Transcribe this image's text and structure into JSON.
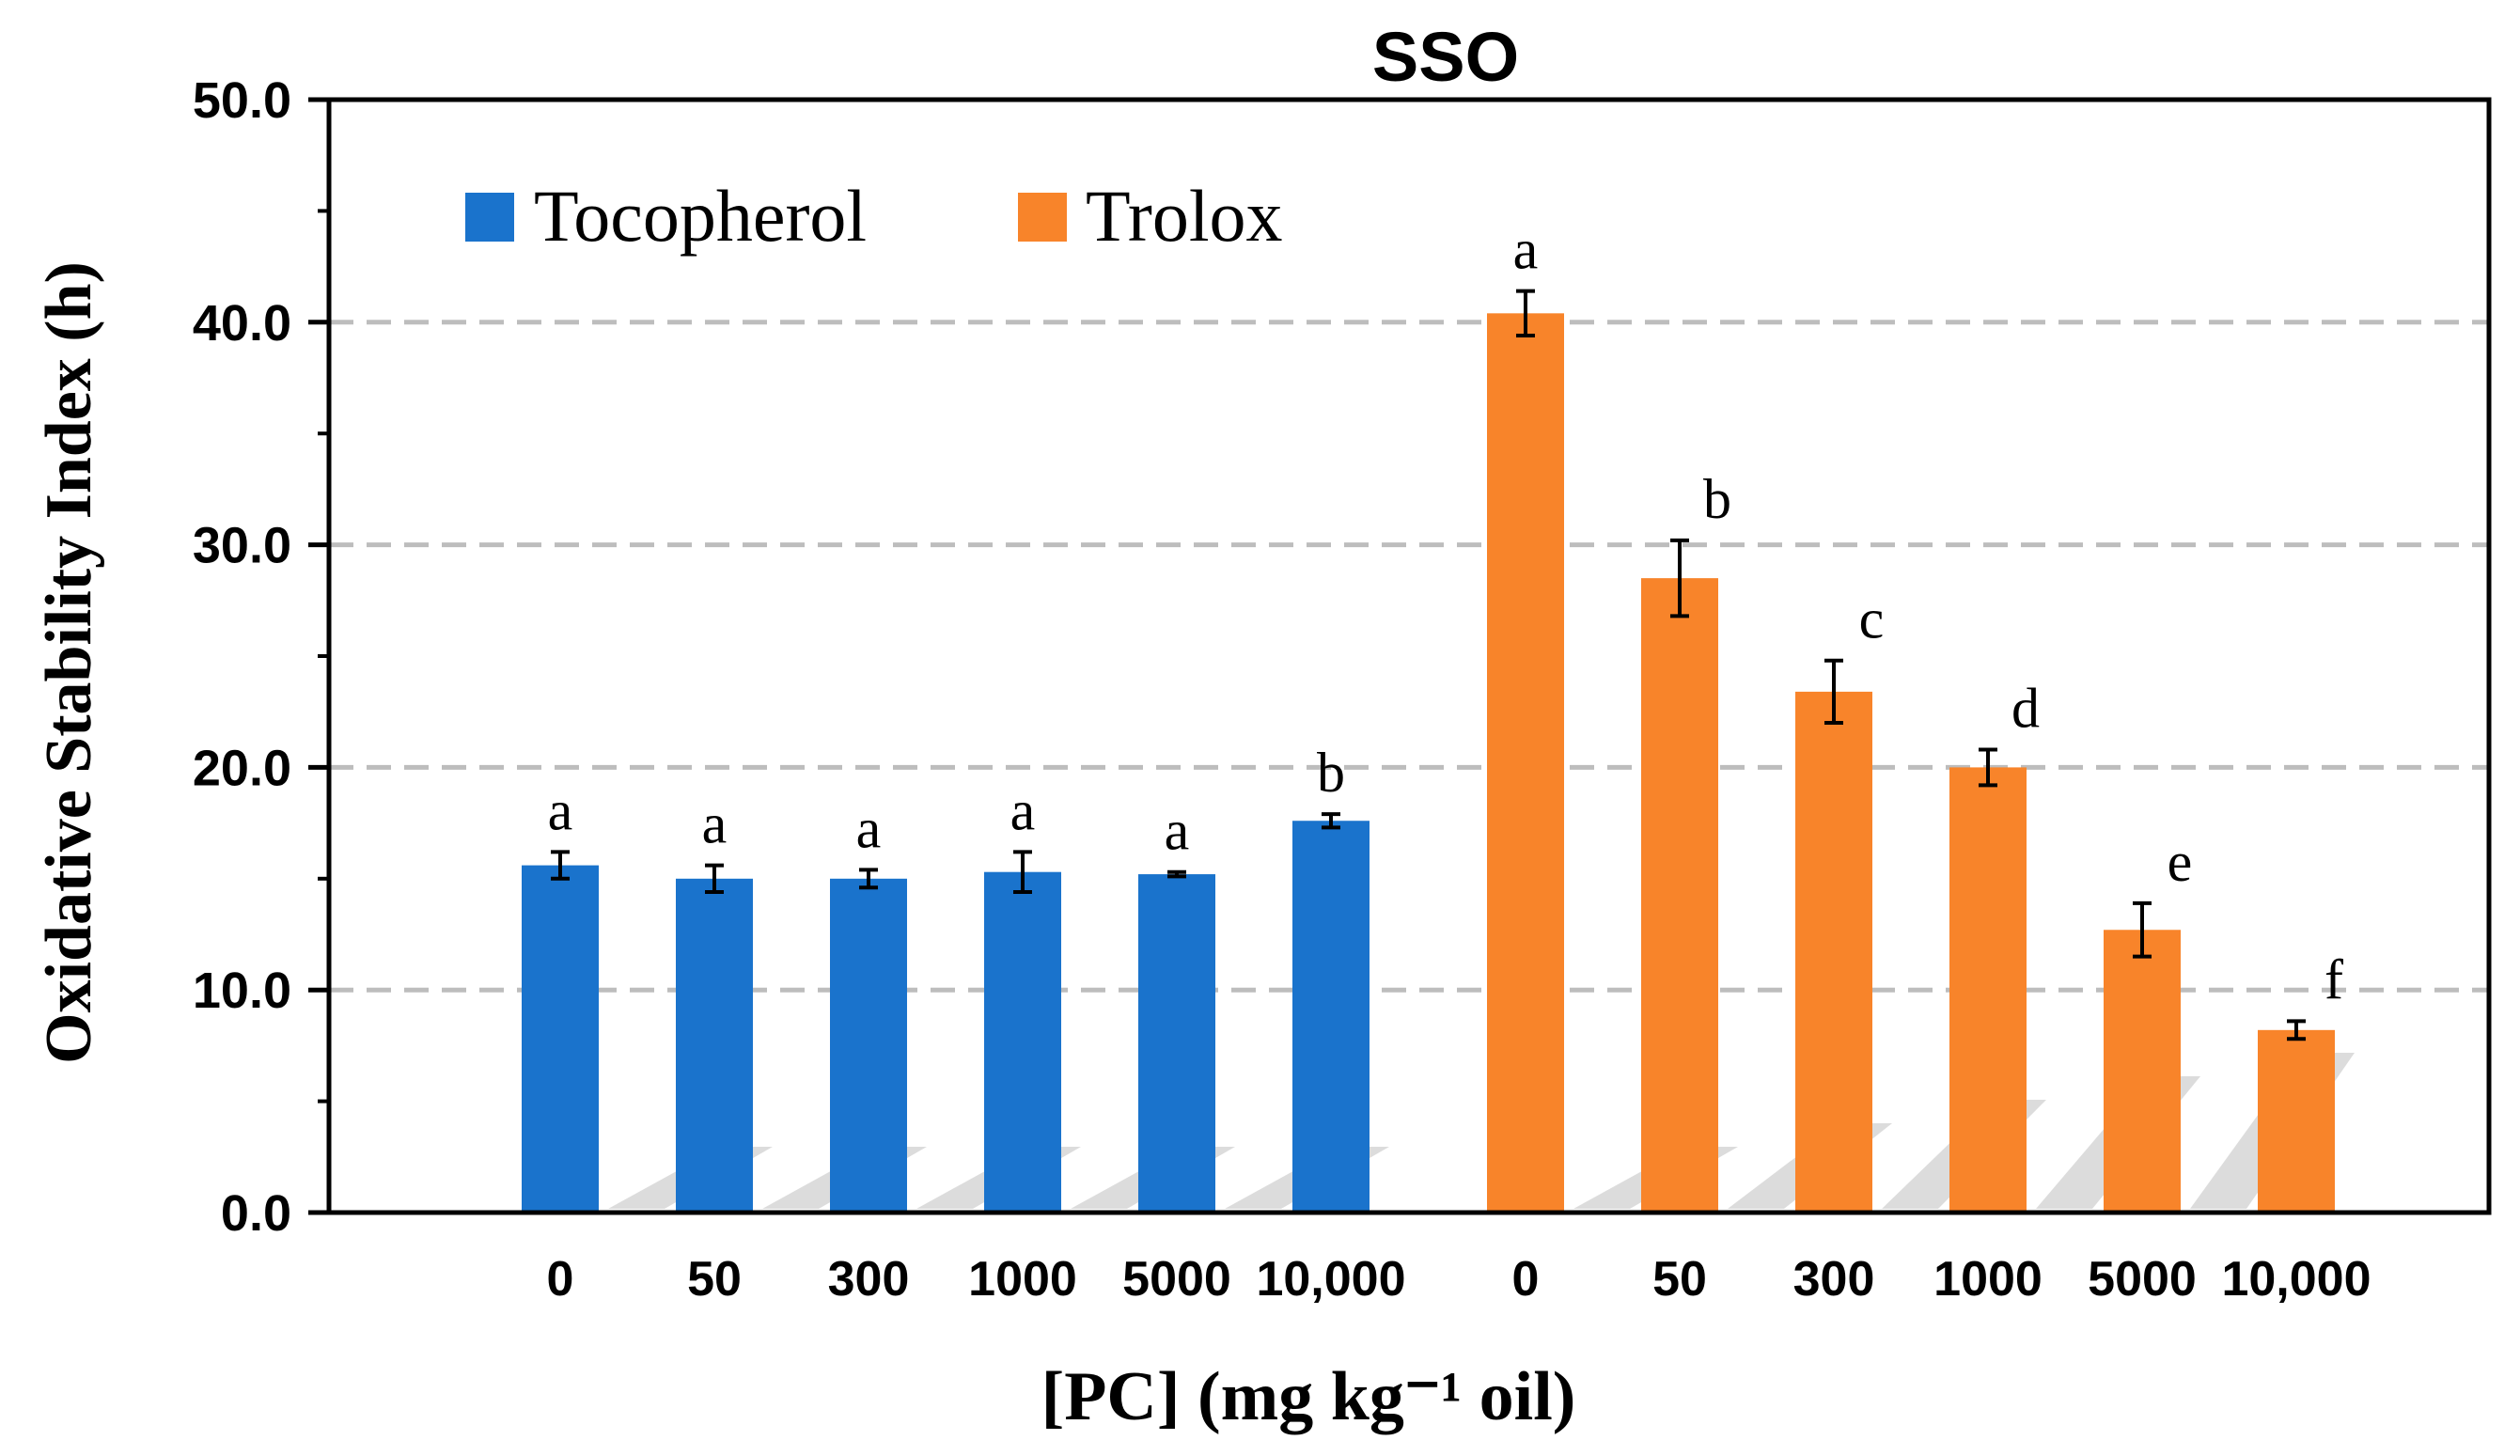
{
  "chart_data": {
    "type": "bar",
    "title": "SSO",
    "ylabel": "Oxidative Stability Index (h)",
    "xlabel": "[PC] (mg kg⁻¹ oil)",
    "ylim": [
      0,
      50
    ],
    "y_ticks": [
      "0.0",
      "10.0",
      "20.0",
      "30.0",
      "40.0",
      "50.0"
    ],
    "grid": "horizontal dashed",
    "legend_position": "top-left",
    "categories": [
      "0",
      "50",
      "300",
      "1000",
      "5000",
      "10,000"
    ],
    "series": [
      {
        "name": "Tocopherol",
        "color": "#1a73cc",
        "values": [
          15.6,
          15.0,
          15.0,
          15.3,
          15.2,
          17.6
        ],
        "errors": [
          0.6,
          0.6,
          0.4,
          0.9,
          0.1,
          0.3
        ],
        "letters": [
          "a",
          "a",
          "a",
          "a",
          "a",
          "b"
        ]
      },
      {
        "name": "Trolox",
        "color": "#f8842a",
        "values": [
          40.4,
          28.5,
          23.4,
          20.0,
          12.7,
          8.2
        ],
        "errors": [
          1.0,
          1.7,
          1.4,
          0.8,
          1.2,
          0.4
        ],
        "letters": [
          "a",
          "b",
          "c",
          "d",
          "e",
          "f"
        ]
      }
    ]
  }
}
